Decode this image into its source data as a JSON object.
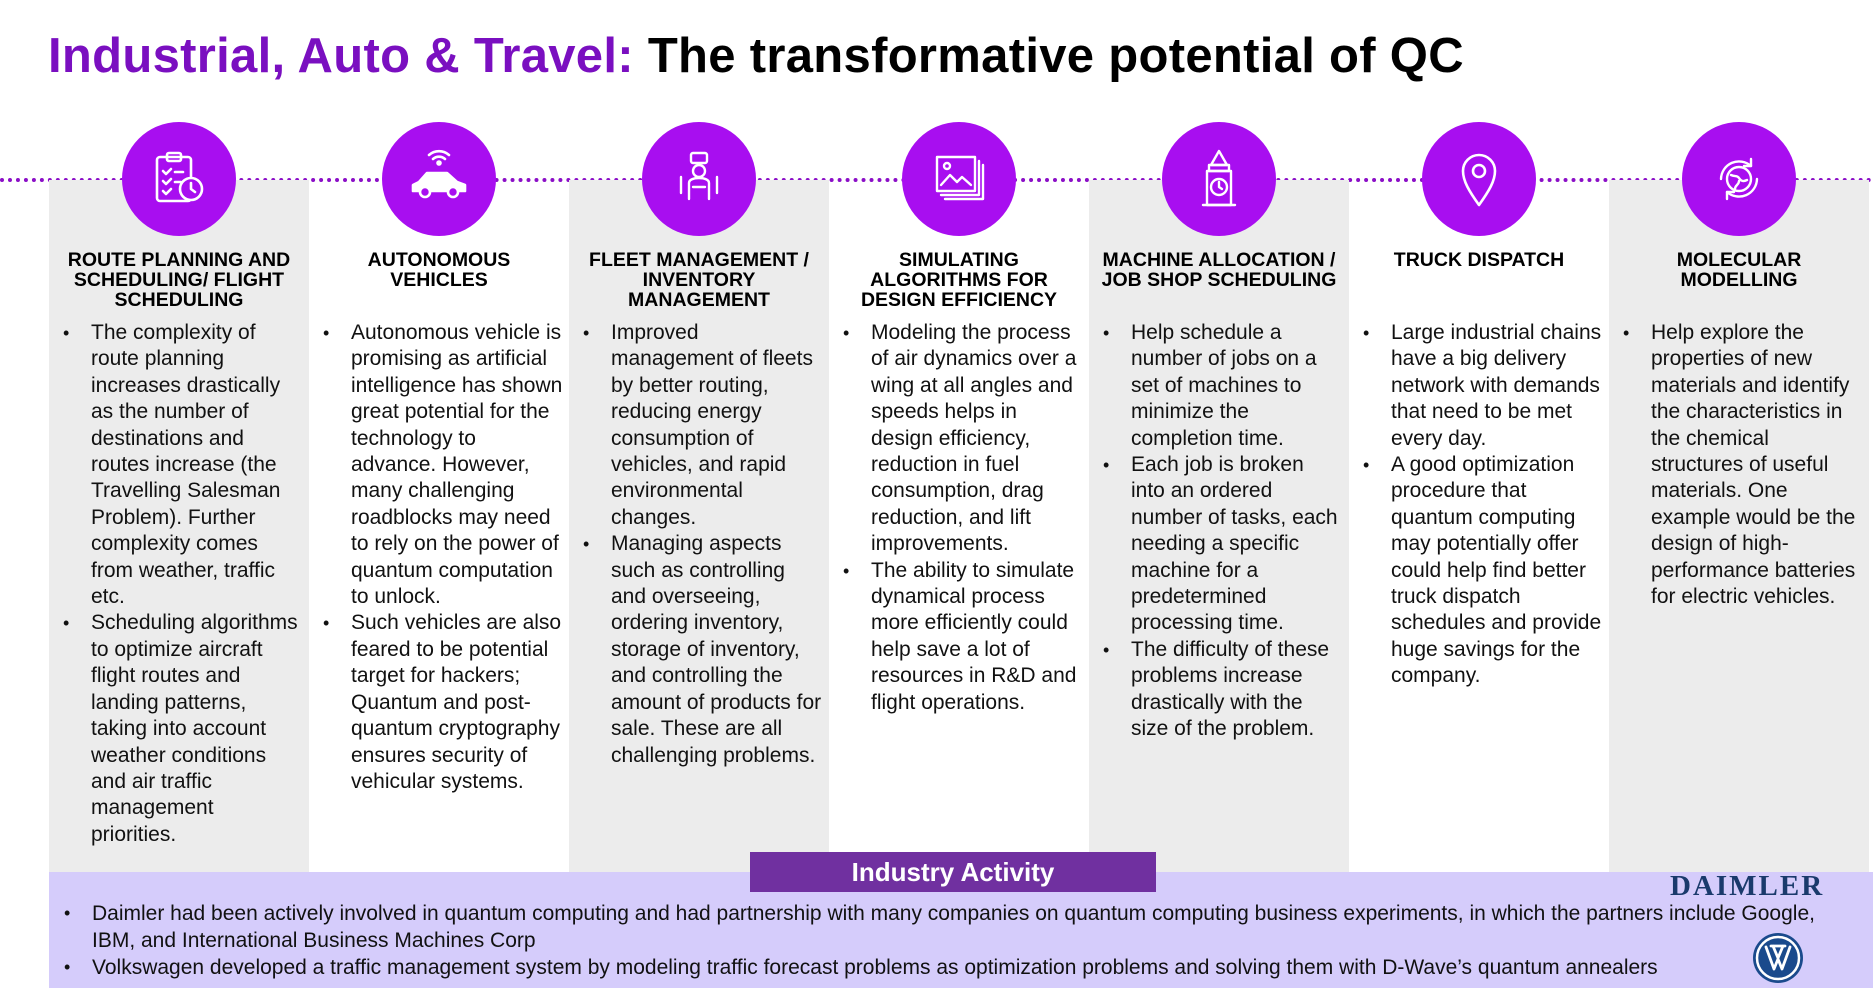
{
  "title": {
    "accent": "Industrial, Auto & Travel:",
    "rest": "The transformative potential of QC"
  },
  "colors": {
    "accent_purple": "#7a0fc0",
    "icon_circle": "#a80ef0",
    "shaded_column": "#ececec",
    "activity_band": "#d5ccfb",
    "activity_title_bg": "#7030a0"
  },
  "columns": [
    {
      "icon": "clipboard-clock-icon",
      "title": "ROUTE PLANNING AND SCHEDULING/ FLIGHT SCHEDULING",
      "bullets": [
        "The complexity of route planning increases drastically as the number of destinations and routes increase (the Travelling Salesman Problem). Further complexity comes from weather, traffic etc.",
        "Scheduling algorithms to optimize aircraft flight routes and landing patterns, taking into account weather conditions and air traffic management priorities."
      ]
    },
    {
      "icon": "connected-car-icon",
      "title": "AUTONOMOUS VEHICLES",
      "bullets": [
        "Autonomous vehicle is promising as artificial intelligence has shown great potential for the technology to advance. However, many challenging roadblocks may need to rely on the power of quantum computation to unlock.",
        "Such vehicles are also feared to be potential target for hackers; Quantum and post-quantum cryptography ensures security of vehicular systems."
      ]
    },
    {
      "icon": "traffic-officer-icon",
      "title": "FLEET MANAGEMENT / INVENTORY MANAGEMENT",
      "bullets": [
        "Improved management of fleets by better routing, reducing energy consumption of vehicles, and rapid environmental changes.",
        "Managing aspects such as controlling and overseeing, ordering inventory, storage of inventory, and controlling the amount of products for sale. These are all challenging problems."
      ]
    },
    {
      "icon": "image-gallery-icon",
      "title": "SIMULATING ALGORITHMS FOR DESIGN EFFICIENCY",
      "bullets": [
        "Modeling the process of air dynamics over a wing at all angles and speeds helps in design efficiency, reduction in fuel consumption, drag reduction, and lift improvements.",
        "The ability to simulate dynamical process more efficiently could help save a lot of resources in R&D and flight operations."
      ]
    },
    {
      "icon": "clock-tower-icon",
      "title": "MACHINE ALLOCATION / JOB SHOP SCHEDULING",
      "bullets": [
        "Help schedule a number of jobs on a set of machines to minimize the completion time.",
        "Each job is broken into an ordered number of tasks, each needing a specific machine for a predetermined processing time.",
        "The difficulty of these problems increase drastically with the size of the problem."
      ]
    },
    {
      "icon": "location-pin-icon",
      "title": "TRUCK DISPATCH",
      "bullets": [
        "Large industrial chains have a big delivery network with demands that need to be met every day.",
        "A good optimization procedure that quantum computing may potentially offer could help find better truck dispatch schedules and provide huge savings for the company."
      ]
    },
    {
      "icon": "globe-refresh-icon",
      "title": "MOLECULAR MODELLING",
      "bullets": [
        "Help explore the properties of new materials and identify the characteristics in the chemical structures of useful materials. One example would be the design of high-performance batteries for electric vehicles."
      ]
    }
  ],
  "activity": {
    "title": "Industry Activity",
    "daimler_logo": "DAIMLER",
    "vw_logo": "volkswagen-logo-icon",
    "items": [
      "Daimler had been actively involved in quantum computing and had partnership with many companies on quantum computing business experiments, in which the partners include Google, IBM, and International Business Machines Corp",
      "Volkswagen developed a traffic management system by modeling traffic forecast problems as optimization problems and solving them with D-Wave’s quantum annealers"
    ]
  }
}
